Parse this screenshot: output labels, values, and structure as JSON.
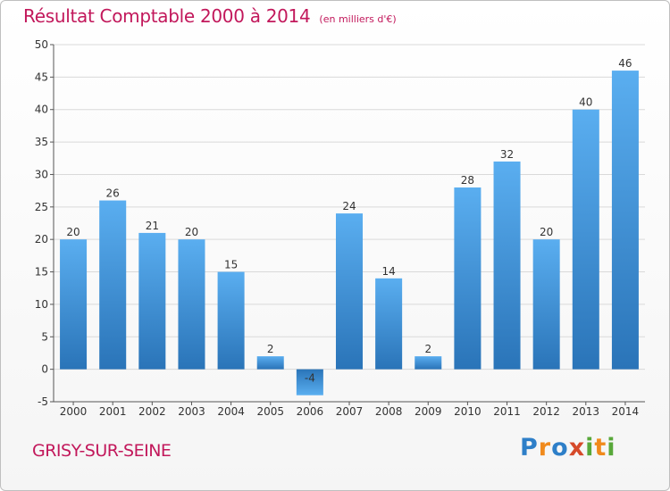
{
  "chart_data": {
    "type": "bar",
    "title": "Résultat Comptable 2000 à 2014",
    "subtitle": "(en milliers d'€)",
    "categories": [
      "2000",
      "2001",
      "2002",
      "2003",
      "2004",
      "2005",
      "2006",
      "2007",
      "2008",
      "2009",
      "2010",
      "2011",
      "2012",
      "2013",
      "2014"
    ],
    "values": [
      20,
      26,
      21,
      20,
      15,
      2,
      -4,
      24,
      14,
      2,
      28,
      32,
      20,
      40,
      46
    ],
    "value_labels": [
      "20",
      "26",
      "21",
      "20",
      "15",
      "2",
      "-4",
      "24",
      "14",
      "2",
      "28",
      "32",
      "20",
      "40",
      "46"
    ],
    "ylim": [
      -5,
      50
    ],
    "yticks": [
      -5,
      0,
      5,
      10,
      15,
      20,
      25,
      30,
      35,
      40,
      45,
      50
    ],
    "grid": true,
    "bar_color": "#3d8fd4",
    "bar_color_light": "#5aaef0",
    "bar_color_dark": "#2a74b8"
  },
  "footer": {
    "town": "GRISY-SUR-SEINE",
    "logo": {
      "letters": [
        "P",
        "r",
        "o",
        "x",
        "i",
        "t",
        "i"
      ],
      "colors": [
        "#2e7fc8",
        "#f08a1c",
        "#2e7fc8",
        "#d64a2a",
        "#58a83a",
        "#f08a1c",
        "#58a83a"
      ]
    }
  },
  "colors": {
    "accent": "#c2185b",
    "grid": "#d9d9d9",
    "axis": "#555555"
  }
}
